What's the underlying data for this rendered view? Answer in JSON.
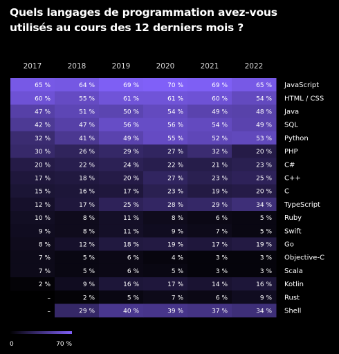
{
  "title": "Quels langages de programmation avez-vous utilisés au cours des 12 derniers mois ?",
  "chart_data": {
    "type": "heatmap",
    "columns": [
      "2017",
      "2018",
      "2019",
      "2020",
      "2021",
      "2022"
    ],
    "rows": [
      "JavaScript",
      "HTML / CSS",
      "Java",
      "SQL",
      "Python",
      "PHP",
      "C#",
      "C++",
      "C",
      "TypeScript",
      "Ruby",
      "Swift",
      "Go",
      "Objective-C",
      "Scala",
      "Kotlin",
      "Rust",
      "Shell"
    ],
    "values": [
      [
        65,
        64,
        69,
        70,
        69,
        65
      ],
      [
        60,
        55,
        61,
        61,
        60,
        54
      ],
      [
        47,
        51,
        50,
        54,
        49,
        48
      ],
      [
        42,
        47,
        56,
        56,
        54,
        49
      ],
      [
        32,
        41,
        49,
        55,
        52,
        53
      ],
      [
        30,
        26,
        29,
        27,
        32,
        20
      ],
      [
        20,
        22,
        24,
        22,
        21,
        23
      ],
      [
        17,
        18,
        20,
        27,
        23,
        25
      ],
      [
        15,
        16,
        17,
        23,
        19,
        20
      ],
      [
        12,
        17,
        25,
        28,
        29,
        34
      ],
      [
        10,
        8,
        11,
        8,
        6,
        5
      ],
      [
        9,
        8,
        11,
        9,
        7,
        5
      ],
      [
        8,
        12,
        18,
        19,
        17,
        19
      ],
      [
        7,
        5,
        6,
        4,
        3,
        3
      ],
      [
        7,
        5,
        6,
        5,
        3,
        3
      ],
      [
        2,
        9,
        16,
        17,
        14,
        16
      ],
      [
        null,
        2,
        5,
        7,
        6,
        9
      ],
      [
        null,
        29,
        40,
        39,
        37,
        34
      ]
    ],
    "value_suffix": " %",
    "missing_label": "–",
    "color_scale": {
      "min": 0,
      "max": 70,
      "min_color": "#000000",
      "max_color": "#8060f8"
    },
    "legend": {
      "min_label": "0",
      "max_label": "70 %"
    }
  }
}
